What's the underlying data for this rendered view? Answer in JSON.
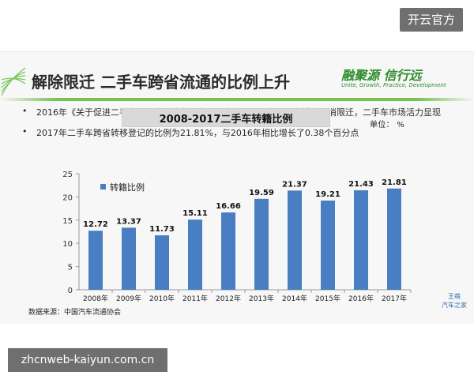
{
  "overlay": {
    "brand": "开云官方",
    "url": "zhcnweb-kaiyun.com.cn"
  },
  "slide": {
    "title": "解除限迁  二手车跨省流通的比例上升",
    "logo_main": "融聚源 信行远",
    "logo_sub": "Unite, Growth, Practice, Development",
    "bullets": [
      "2016年《关于促进二手车便利交易的若干意见》出台以来，全国百余城市取消限迁，二手车市场活力显现",
      "2017年二手车跨省转移登记的比例为21.81%，与2016年相比增长了0.38个百分点"
    ],
    "source": "数据来源：中国汽车流通协会",
    "signature": "王萌\n汽车之家"
  },
  "colors": {
    "bar": "#4a7ec2",
    "accent_green": "#6fbe48"
  },
  "chart_data": {
    "type": "bar",
    "title": "2008-2017二手车转籍比例",
    "unit_label": "单位：  %",
    "categories": [
      "2008年",
      "2009年",
      "2010年",
      "2011年",
      "2012年",
      "2013年",
      "2014年",
      "2015年",
      "2016年",
      "2017年"
    ],
    "series": [
      {
        "name": "转籍比例",
        "values": [
          12.72,
          13.37,
          11.73,
          15.11,
          16.66,
          19.59,
          21.37,
          19.21,
          21.43,
          21.81
        ]
      }
    ],
    "ylim": [
      0,
      25
    ],
    "yticks": [
      0,
      5,
      10,
      15,
      20,
      25
    ],
    "legend": "top-left",
    "grid": false
  }
}
